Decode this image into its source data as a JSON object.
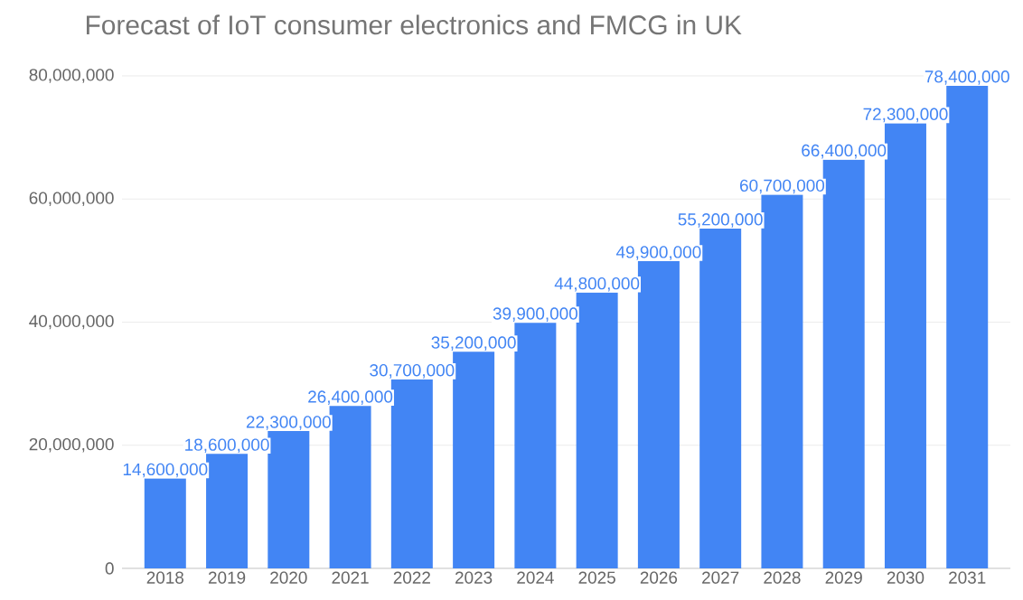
{
  "chart_data": {
    "type": "bar",
    "title": "Forecast of IoT consumer electronics and FMCG in UK",
    "categories": [
      "2018",
      "2019",
      "2020",
      "2021",
      "2022",
      "2023",
      "2024",
      "2025",
      "2026",
      "2027",
      "2028",
      "2029",
      "2030",
      "2031"
    ],
    "values": [
      14600000,
      18600000,
      22300000,
      26400000,
      30700000,
      35200000,
      39900000,
      44800000,
      49900000,
      55200000,
      60700000,
      66400000,
      72300000,
      78400000
    ],
    "value_labels": [
      "14,600,000",
      "18,600,000",
      "22,300,000",
      "26,400,000",
      "30,700,000",
      "35,200,000",
      "39,900,000",
      "44,800,000",
      "49,900,000",
      "55,200,000",
      "60,700,000",
      "66,400,000",
      "72,300,000",
      "78,400,000"
    ],
    "color": "#4285f4",
    "ylim": [
      0,
      80000000
    ],
    "yticks": [
      {
        "value": 0,
        "label": "0"
      },
      {
        "value": 20000000,
        "label": "20,000,000"
      },
      {
        "value": 40000000,
        "label": "40,000,000"
      },
      {
        "value": 60000000,
        "label": "60,000,000"
      },
      {
        "value": 80000000,
        "label": "80,000,000"
      }
    ],
    "grid": "y"
  }
}
